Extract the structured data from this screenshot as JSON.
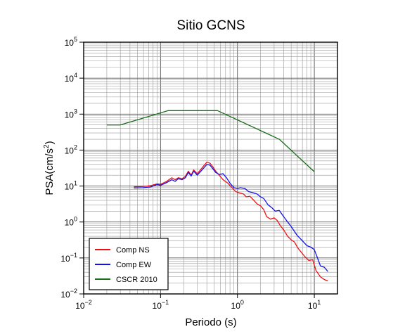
{
  "chart_data": {
    "type": "line",
    "title": "Sitio GCNS",
    "xlabel": "Periodo (s)",
    "ylabel_base": "PSA(cm/s",
    "ylabel_sup": "2",
    "ylabel_end": ")",
    "x_scale": "log",
    "y_scale": "log",
    "xlim": [
      0.01,
      20
    ],
    "ylim": [
      0.01,
      100000
    ],
    "grid": true,
    "legend_position": "bottom-left",
    "x_ticks": [
      {
        "base": "10",
        "exp": "−2"
      },
      {
        "base": "10",
        "exp": "−1"
      },
      {
        "base": "10",
        "exp": "0"
      },
      {
        "base": "10",
        "exp": "1"
      }
    ],
    "y_ticks": [
      {
        "base": "10",
        "exp": "−2"
      },
      {
        "base": "10",
        "exp": "−1"
      },
      {
        "base": "10",
        "exp": "0"
      },
      {
        "base": "10",
        "exp": "1"
      },
      {
        "base": "10",
        "exp": "2"
      },
      {
        "base": "10",
        "exp": "3"
      },
      {
        "base": "10",
        "exp": "4"
      },
      {
        "base": "10",
        "exp": "5"
      }
    ],
    "series": [
      {
        "name": "Comp NS",
        "color": "#ee1111",
        "points": [
          [
            0.045,
            9.5
          ],
          [
            0.06,
            9.7
          ],
          [
            0.075,
            10.3
          ],
          [
            0.09,
            11.5
          ],
          [
            0.1,
            11.2
          ],
          [
            0.12,
            13.5
          ],
          [
            0.14,
            17.0
          ],
          [
            0.155,
            15.0
          ],
          [
            0.17,
            17.0
          ],
          [
            0.19,
            16.0
          ],
          [
            0.21,
            18.5
          ],
          [
            0.23,
            26.0
          ],
          [
            0.25,
            20.0
          ],
          [
            0.27,
            28.0
          ],
          [
            0.3,
            22.0
          ],
          [
            0.33,
            28.0
          ],
          [
            0.37,
            38.0
          ],
          [
            0.4,
            46.0
          ],
          [
            0.44,
            43.0
          ],
          [
            0.48,
            34.0
          ],
          [
            0.52,
            26.0
          ],
          [
            0.58,
            20.0
          ],
          [
            0.65,
            15.0
          ],
          [
            0.75,
            12.0
          ],
          [
            0.85,
            9.0
          ],
          [
            0.95,
            7.0
          ],
          [
            1.05,
            6.5
          ],
          [
            1.2,
            6.0
          ],
          [
            1.3,
            5.0
          ],
          [
            1.45,
            5.2
          ],
          [
            1.6,
            4.2
          ],
          [
            1.8,
            3.2
          ],
          [
            2.0,
            2.8
          ],
          [
            2.2,
            2.2
          ],
          [
            2.4,
            1.4
          ],
          [
            2.7,
            1.2
          ],
          [
            3.0,
            1.3
          ],
          [
            3.3,
            1.1
          ],
          [
            3.6,
            0.8
          ],
          [
            4.0,
            0.6
          ],
          [
            4.5,
            0.4
          ],
          [
            5.0,
            0.32
          ],
          [
            5.5,
            0.28
          ],
          [
            6.0,
            0.2
          ],
          [
            6.5,
            0.16
          ],
          [
            7.5,
            0.11
          ],
          [
            8.5,
            0.085
          ],
          [
            9.5,
            0.09
          ],
          [
            10.5,
            0.045
          ],
          [
            12.0,
            0.03
          ],
          [
            13.5,
            0.025
          ],
          [
            15.0,
            0.023
          ]
        ]
      },
      {
        "name": "Comp EW",
        "color": "#1111ee",
        "points": [
          [
            0.045,
            8.8
          ],
          [
            0.06,
            9.0
          ],
          [
            0.075,
            9.5
          ],
          [
            0.09,
            11.0
          ],
          [
            0.1,
            10.5
          ],
          [
            0.12,
            12.5
          ],
          [
            0.14,
            15.0
          ],
          [
            0.155,
            13.5
          ],
          [
            0.17,
            16.0
          ],
          [
            0.19,
            15.0
          ],
          [
            0.21,
            17.0
          ],
          [
            0.23,
            24.0
          ],
          [
            0.25,
            19.0
          ],
          [
            0.27,
            26.0
          ],
          [
            0.3,
            20.0
          ],
          [
            0.33,
            25.0
          ],
          [
            0.37,
            33.0
          ],
          [
            0.4,
            40.0
          ],
          [
            0.44,
            38.0
          ],
          [
            0.48,
            30.0
          ],
          [
            0.52,
            24.0
          ],
          [
            0.58,
            21.0
          ],
          [
            0.65,
            22.0
          ],
          [
            0.72,
            17.0
          ],
          [
            0.8,
            12.0
          ],
          [
            0.9,
            9.0
          ],
          [
            1.0,
            8.5
          ],
          [
            1.1,
            9.0
          ],
          [
            1.25,
            8.5
          ],
          [
            1.4,
            7.0
          ],
          [
            1.6,
            6.5
          ],
          [
            1.8,
            6.0
          ],
          [
            2.0,
            5.0
          ],
          [
            2.2,
            4.5
          ],
          [
            2.5,
            3.0
          ],
          [
            2.8,
            2.5
          ],
          [
            3.1,
            2.0
          ],
          [
            3.5,
            2.1
          ],
          [
            4.0,
            1.4
          ],
          [
            4.5,
            1.0
          ],
          [
            5.0,
            0.75
          ],
          [
            5.5,
            0.55
          ],
          [
            6.0,
            0.42
          ],
          [
            7.0,
            0.3
          ],
          [
            8.0,
            0.22
          ],
          [
            9.0,
            0.2
          ],
          [
            10.0,
            0.17
          ],
          [
            11.0,
            0.1
          ],
          [
            12.0,
            0.06
          ],
          [
            13.5,
            0.055
          ],
          [
            15.0,
            0.042
          ]
        ]
      },
      {
        "name": "CSCR 2010",
        "color": "#1a6e1a",
        "points": [
          [
            0.02,
            500
          ],
          [
            0.03,
            500
          ],
          [
            0.125,
            1250
          ],
          [
            0.55,
            1250
          ],
          [
            3.5,
            200
          ],
          [
            10.0,
            25
          ]
        ]
      }
    ]
  }
}
